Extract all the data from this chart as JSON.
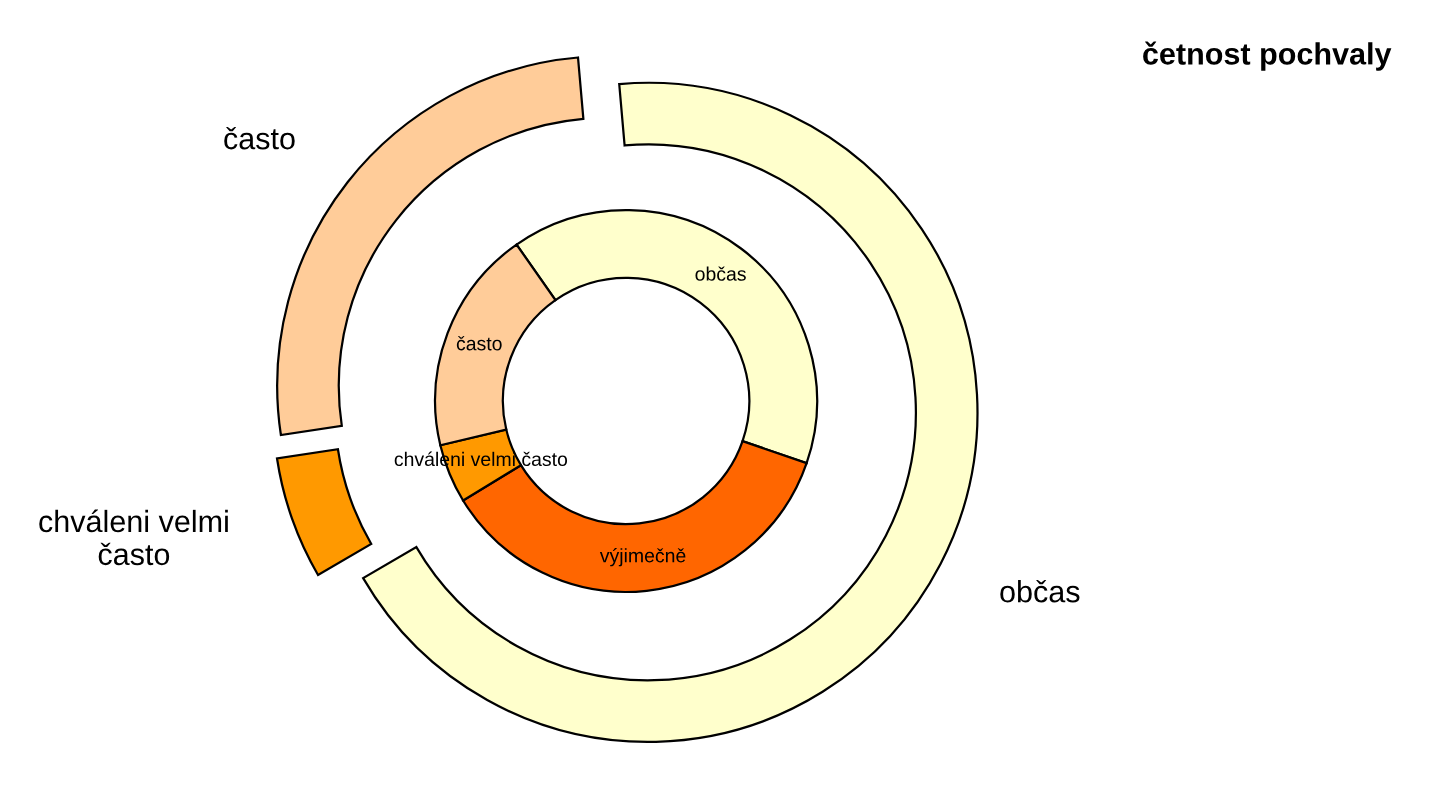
{
  "chart_data": {
    "type": "donut",
    "title": "četnost pochvaly",
    "categories": [
      "občas",
      "výjimečně",
      "chváleni velmi často",
      "často"
    ],
    "colors": [
      "#ffffcc",
      "#ff6600",
      "#ff9900",
      "#ffcc99"
    ],
    "series": [
      {
        "values": [
          40,
          36,
          5,
          19
        ]
      },
      {
        "values": [
          68,
          null,
          6,
          26
        ]
      }
    ]
  }
}
